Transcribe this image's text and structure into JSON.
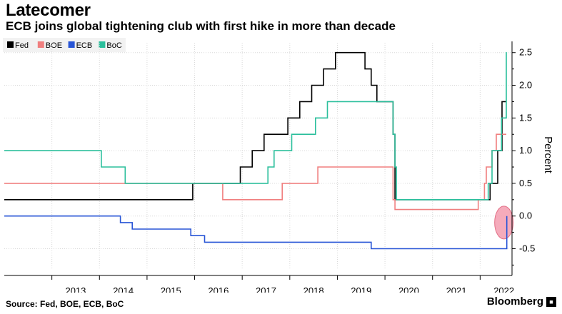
{
  "title": "Latecomer",
  "subtitle": "ECB joins global tightening club with first hike in more than decade",
  "source": "Source: Fed, BOE, ECB, BoC",
  "brand": "Bloomberg",
  "brand_icon": "bloomberg-logo-icon",
  "chart_data": {
    "type": "line",
    "step": true,
    "ylabel": "Percent",
    "ylim": [
      -0.8,
      2.65
    ],
    "xlim": [
      2012.0,
      2022.67
    ],
    "yticks": [
      -0.5,
      0.0,
      0.5,
      1.0,
      1.5,
      2.0,
      2.5
    ],
    "ytick_labels": [
      "-0.5",
      "0.0",
      "0.5",
      "1.0",
      "1.5",
      "2.0",
      "2.5"
    ],
    "xticks": [
      2013,
      2014,
      2015,
      2016,
      2017,
      2018,
      2019,
      2020,
      2021,
      2022
    ],
    "xtick_labels": [
      "2013",
      "2014",
      "2015",
      "2016",
      "2017",
      "2018",
      "2019",
      "2020",
      "2021",
      "2022"
    ],
    "grid": true,
    "legend_position": "top-left",
    "annotations": [
      {
        "type": "ellipse-highlight",
        "x": 2022.5,
        "y": -0.1,
        "note": "ECB first hike",
        "color": "#f4a3b4"
      }
    ],
    "series": [
      {
        "name": "Fed",
        "color": "#000000",
        "x": [
          2012.0,
          2015.96,
          2016.96,
          2017.21,
          2017.46,
          2017.96,
          2018.21,
          2018.46,
          2018.71,
          2018.96,
          2019.58,
          2019.71,
          2019.83,
          2020.17,
          2020.21,
          2022.21,
          2022.37,
          2022.46,
          2022.55
        ],
        "y": [
          0.25,
          0.5,
          0.75,
          1.0,
          1.25,
          1.5,
          1.75,
          2.0,
          2.25,
          2.5,
          2.25,
          2.0,
          1.75,
          1.25,
          0.25,
          0.5,
          1.0,
          1.75,
          1.75
        ]
      },
      {
        "name": "BOE",
        "color": "#f07f7f",
        "x": [
          2012.0,
          2016.59,
          2017.84,
          2018.59,
          2020.17,
          2020.21,
          2021.96,
          2022.09,
          2022.13,
          2022.25,
          2022.34,
          2022.55
        ],
        "y": [
          0.5,
          0.25,
          0.5,
          0.75,
          0.25,
          0.1,
          0.25,
          0.5,
          0.75,
          1.0,
          1.25,
          1.25
        ]
      },
      {
        "name": "ECB",
        "color": "#2855d6",
        "x": [
          2012.0,
          2014.44,
          2014.69,
          2015.92,
          2016.21,
          2019.71,
          2022.55,
          2022.56
        ],
        "y": [
          0.0,
          -0.1,
          -0.2,
          -0.3,
          -0.4,
          -0.5,
          -0.5,
          0.0
        ]
      },
      {
        "name": "BoC",
        "color": "#2bbf9c",
        "x": [
          2012.0,
          2014.04,
          2014.54,
          2017.54,
          2017.67,
          2018.04,
          2018.54,
          2018.79,
          2020.17,
          2020.21,
          2020.24,
          2022.17,
          2022.25,
          2022.45,
          2022.54,
          2022.55,
          2022.56
        ],
        "y": [
          1.0,
          0.75,
          0.5,
          0.75,
          1.0,
          1.25,
          1.5,
          1.75,
          1.25,
          0.75,
          0.25,
          0.5,
          1.0,
          1.5,
          1.5,
          2.5,
          2.5
        ]
      }
    ]
  }
}
